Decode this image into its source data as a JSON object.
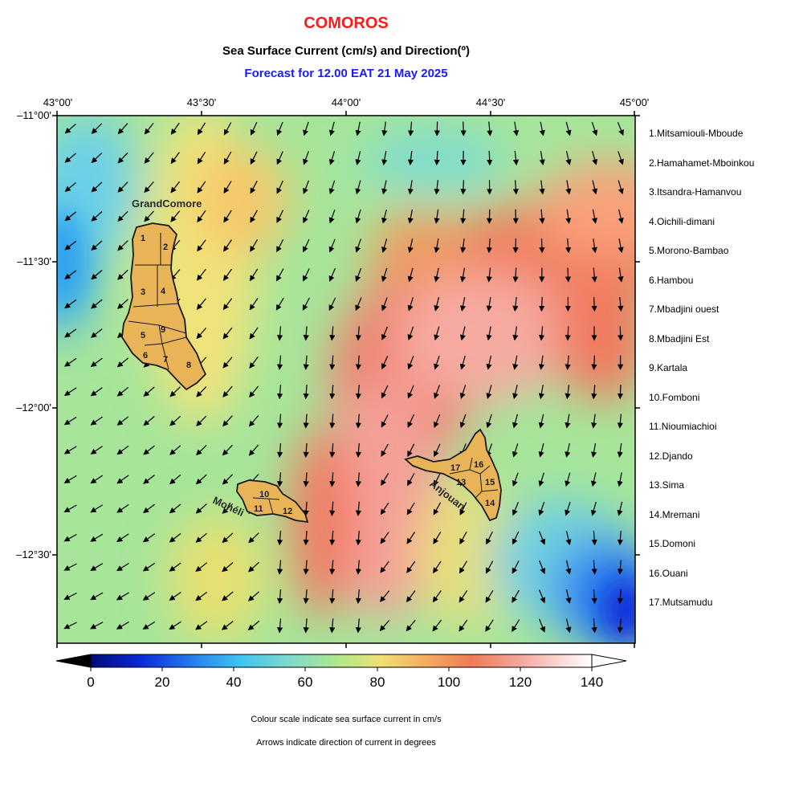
{
  "header": {
    "title": "COMOROS",
    "subtitle": "Sea Surface Current (cm/s) and Direction(º)",
    "forecast": "Forecast for  12.00 EAT 21 May 2025"
  },
  "axes": {
    "lon_ticks": [
      "43°00'",
      "43°30'",
      "44°00'",
      "44°30'",
      "45°00'"
    ],
    "lat_ticks": [
      "–11°00'",
      "–11°30'",
      "–12°00'",
      "–12°30'"
    ]
  },
  "islands": {
    "grand_comore": "GrandComore",
    "moheli": "Mohéli",
    "anjouan": "Anjouan"
  },
  "region_numbers": [
    "1",
    "2",
    "3",
    "4",
    "5",
    "6",
    "7",
    "8",
    "9",
    "10",
    "11",
    "12",
    "13",
    "14",
    "15",
    "16",
    "17"
  ],
  "legend": [
    "1.Mitsamiouli-Mboude",
    "2.Hamahamet-Mboinkou",
    "3.Itsandra-Hamanvou",
    "4.Oichili-dimani",
    "5.Morono-Bambao",
    "6.Hambou",
    "7.Mbadjini ouest",
    "8.Mbadjini Est",
    "9.Kartala",
    "10.Fomboni",
    "11.Nioumiachioi",
    "12.Djando",
    "13.Sima",
    "14.Mremani",
    "15.Domoni",
    "16.Ouani",
    "17.Mutsamudu"
  ],
  "colorbar": {
    "ticks": [
      "0",
      "20",
      "40",
      "60",
      "80",
      "100",
      "120",
      "140"
    ],
    "min": 0,
    "max": 140
  },
  "notes": {
    "line1": "Colour scale indicate sea surface current in cm/s",
    "line2": "Arrows indicate direction of current in degrees"
  },
  "colors": {
    "title": "#ff1a1a",
    "forecast": "#1a1aff",
    "land": "#e8b457"
  }
}
